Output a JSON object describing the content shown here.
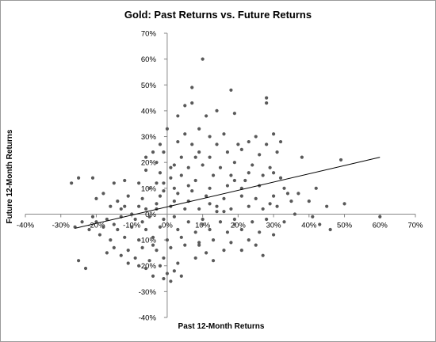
{
  "chart_data": {
    "type": "scatter",
    "title": "Gold: Past Returns vs. Future Returns",
    "xlabel": "Past 12-Month Returns",
    "ylabel": "Future 12-Month Returns",
    "xlim": [
      -0.4,
      0.7
    ],
    "ylim": [
      -0.4,
      0.7
    ],
    "x_ticks": [
      -0.4,
      -0.3,
      -0.2,
      -0.1,
      0.0,
      0.1,
      0.2,
      0.3,
      0.4,
      0.5,
      0.6,
      0.7
    ],
    "y_ticks": [
      -0.4,
      -0.3,
      -0.2,
      -0.1,
      0.0,
      0.1,
      0.2,
      0.3,
      0.4,
      0.5,
      0.6,
      0.7
    ],
    "x_tick_labels": [
      "-40%",
      "-30%",
      "-20%",
      "-10%",
      "0%",
      "10%",
      "20%",
      "30%",
      "40%",
      "50%",
      "60%",
      "70%"
    ],
    "y_tick_labels": [
      "-40%",
      "-30%",
      "-20%",
      "-10%",
      "0%",
      "10%",
      "20%",
      "30%",
      "40%",
      "50%",
      "60%",
      "70%"
    ],
    "grid": false,
    "legend": false,
    "marker_color": "#595959",
    "trendline": {
      "x": [
        -0.26,
        0.6
      ],
      "y": [
        -0.055,
        0.22
      ],
      "color": "#000000"
    },
    "points": [
      [
        0.1,
        0.6
      ],
      [
        0.07,
        0.49
      ],
      [
        0.18,
        0.48
      ],
      [
        0.28,
        0.45
      ],
      [
        0.28,
        0.43
      ],
      [
        0.07,
        0.43
      ],
      [
        0.05,
        0.42
      ],
      [
        0.11,
        0.38
      ],
      [
        0.14,
        0.4
      ],
      [
        0.19,
        0.39
      ],
      [
        0.03,
        0.38
      ],
      [
        0.09,
        0.33
      ],
      [
        0.05,
        0.31
      ],
      [
        0.12,
        0.3
      ],
      [
        0.16,
        0.31
      ],
      [
        0.25,
        0.3
      ],
      [
        0.3,
        0.31
      ],
      [
        0.0,
        0.33
      ],
      [
        -0.02,
        0.27
      ],
      [
        0.03,
        0.28
      ],
      [
        0.07,
        0.27
      ],
      [
        0.14,
        0.27
      ],
      [
        0.2,
        0.27
      ],
      [
        0.23,
        0.28
      ],
      [
        0.28,
        0.27
      ],
      [
        0.32,
        0.28
      ],
      [
        0.38,
        0.22
      ],
      [
        0.49,
        0.21
      ],
      [
        0.31,
        0.24
      ],
      [
        0.26,
        0.23
      ],
      [
        0.21,
        0.25
      ],
      [
        0.17,
        0.24
      ],
      [
        0.12,
        0.22
      ],
      [
        0.09,
        0.24
      ],
      [
        0.04,
        0.22
      ],
      [
        -0.01,
        0.24
      ],
      [
        -0.04,
        0.24
      ],
      [
        -0.06,
        0.22
      ],
      [
        -0.03,
        0.2
      ],
      [
        0.01,
        0.18
      ],
      [
        0.06,
        0.18
      ],
      [
        0.1,
        0.19
      ],
      [
        0.15,
        0.18
      ],
      [
        0.19,
        0.2
      ],
      [
        0.24,
        0.19
      ],
      [
        0.29,
        0.18
      ],
      [
        0.3,
        0.16
      ],
      [
        0.32,
        0.14
      ],
      [
        0.27,
        0.15
      ],
      [
        0.23,
        0.16
      ],
      [
        0.18,
        0.15
      ],
      [
        0.13,
        0.15
      ],
      [
        0.08,
        0.13
      ],
      [
        0.04,
        0.15
      ],
      [
        0.01,
        0.14
      ],
      [
        -0.02,
        0.16
      ],
      [
        -0.06,
        0.17
      ],
      [
        -0.08,
        0.12
      ],
      [
        -0.12,
        0.13
      ],
      [
        -0.15,
        0.12
      ],
      [
        -0.21,
        0.14
      ],
      [
        -0.25,
        0.14
      ],
      [
        -0.27,
        0.12
      ],
      [
        -0.05,
        0.1
      ],
      [
        -0.01,
        0.09
      ],
      [
        0.03,
        0.08
      ],
      [
        0.07,
        0.09
      ],
      [
        0.12,
        0.1
      ],
      [
        0.17,
        0.11
      ],
      [
        0.21,
        0.1
      ],
      [
        0.26,
        0.11
      ],
      [
        0.33,
        0.1
      ],
      [
        0.37,
        0.08
      ],
      [
        0.42,
        0.1
      ],
      [
        0.4,
        0.05
      ],
      [
        0.45,
        0.03
      ],
      [
        0.5,
        0.04
      ],
      [
        0.35,
        0.05
      ],
      [
        0.3,
        0.07
      ],
      [
        0.25,
        0.06
      ],
      [
        0.21,
        0.07
      ],
      [
        0.16,
        0.06
      ],
      [
        0.11,
        0.07
      ],
      [
        0.06,
        0.05
      ],
      [
        0.02,
        0.05
      ],
      [
        -0.02,
        0.07
      ],
      [
        -0.07,
        0.06
      ],
      [
        -0.11,
        0.07
      ],
      [
        -0.14,
        0.05
      ],
      [
        -0.18,
        0.08
      ],
      [
        -0.2,
        0.06
      ],
      [
        -0.16,
        0.03
      ],
      [
        -0.12,
        0.03
      ],
      [
        -0.08,
        0.03
      ],
      [
        -0.03,
        0.02
      ],
      [
        0.01,
        0.03
      ],
      [
        0.05,
        0.02
      ],
      [
        0.09,
        0.02
      ],
      [
        0.14,
        0.03
      ],
      [
        0.18,
        0.02
      ],
      [
        0.23,
        0.03
      ],
      [
        0.27,
        0.02
      ],
      [
        0.31,
        0.03
      ],
      [
        0.36,
        0.0
      ],
      [
        0.41,
        -0.01
      ],
      [
        0.43,
        -0.04
      ],
      [
        0.46,
        -0.06
      ],
      [
        0.6,
        -0.01
      ],
      [
        0.33,
        -0.03
      ],
      [
        0.28,
        -0.02
      ],
      [
        0.24,
        -0.03
      ],
      [
        0.19,
        -0.02
      ],
      [
        0.15,
        -0.03
      ],
      [
        0.1,
        -0.02
      ],
      [
        0.06,
        -0.03
      ],
      [
        0.02,
        -0.01
      ],
      [
        -0.01,
        -0.02
      ],
      [
        -0.05,
        -0.01
      ],
      [
        -0.09,
        -0.02
      ],
      [
        -0.13,
        -0.01
      ],
      [
        -0.17,
        -0.02
      ],
      [
        -0.21,
        -0.01
      ],
      [
        -0.24,
        -0.03
      ],
      [
        -0.26,
        -0.05
      ],
      [
        -0.22,
        -0.06
      ],
      [
        -0.18,
        -0.05
      ],
      [
        -0.14,
        -0.06
      ],
      [
        -0.1,
        -0.05
      ],
      [
        -0.06,
        -0.06
      ],
      [
        -0.02,
        -0.05
      ],
      [
        0.03,
        -0.06
      ],
      [
        0.08,
        -0.07
      ],
      [
        0.12,
        -0.06
      ],
      [
        0.17,
        -0.07
      ],
      [
        0.21,
        -0.06
      ],
      [
        0.26,
        -0.07
      ],
      [
        0.3,
        -0.08
      ],
      [
        0.23,
        -0.1
      ],
      [
        0.18,
        -0.11
      ],
      [
        0.13,
        -0.1
      ],
      [
        0.09,
        -0.11
      ],
      [
        0.04,
        -0.09
      ],
      [
        0.0,
        -0.1
      ],
      [
        -0.04,
        -0.09
      ],
      [
        -0.08,
        -0.1
      ],
      [
        -0.12,
        -0.09
      ],
      [
        -0.16,
        -0.1
      ],
      [
        -0.19,
        -0.08
      ],
      [
        -0.15,
        -0.13
      ],
      [
        -0.11,
        -0.14
      ],
      [
        -0.07,
        -0.13
      ],
      [
        -0.03,
        -0.14
      ],
      [
        0.01,
        -0.13
      ],
      [
        0.05,
        -0.12
      ],
      [
        0.11,
        -0.15
      ],
      [
        0.16,
        -0.14
      ],
      [
        0.21,
        -0.14
      ],
      [
        0.25,
        -0.12
      ],
      [
        0.27,
        -0.16
      ],
      [
        0.13,
        -0.18
      ],
      [
        0.08,
        -0.17
      ],
      [
        0.03,
        -0.19
      ],
      [
        -0.01,
        -0.17
      ],
      [
        -0.05,
        -0.18
      ],
      [
        -0.09,
        -0.17
      ],
      [
        -0.13,
        -0.16
      ],
      [
        -0.17,
        -0.15
      ],
      [
        -0.06,
        -0.21
      ],
      [
        -0.02,
        -0.2
      ],
      [
        0.02,
        -0.22
      ],
      [
        -0.04,
        -0.24
      ],
      [
        0.01,
        -0.26
      ],
      [
        -0.01,
        -0.25
      ],
      [
        0.0,
        -0.23
      ],
      [
        0.04,
        -0.24
      ],
      [
        -0.08,
        -0.2
      ],
      [
        -0.23,
        -0.21
      ],
      [
        -0.25,
        -0.18
      ],
      [
        -0.11,
        -0.19
      ],
      [
        0.09,
        -0.12
      ],
      [
        -0.01,
        0.12
      ],
      [
        0.02,
        0.1
      ],
      [
        0.08,
        0.22
      ],
      [
        -0.03,
        0.12
      ],
      [
        0.02,
        0.19
      ],
      [
        -0.03,
        0.04
      ],
      [
        0.06,
        0.11
      ],
      [
        -0.1,
        0.0
      ],
      [
        -0.06,
        0.02
      ],
      [
        -0.13,
        0.02
      ],
      [
        0.16,
        0.01
      ],
      [
        0.12,
        0.04
      ],
      [
        0.29,
        0.04
      ],
      [
        0.19,
        -0.04
      ],
      [
        0.1,
        -0.04
      ],
      [
        -0.07,
        -0.03
      ],
      [
        -0.15,
        -0.04
      ],
      [
        -0.2,
        -0.03
      ],
      [
        0.14,
        0.01
      ],
      [
        -0.04,
        -0.12
      ],
      [
        0.19,
        0.13
      ],
      [
        0.22,
        0.13
      ],
      [
        0.34,
        0.08
      ]
    ]
  }
}
